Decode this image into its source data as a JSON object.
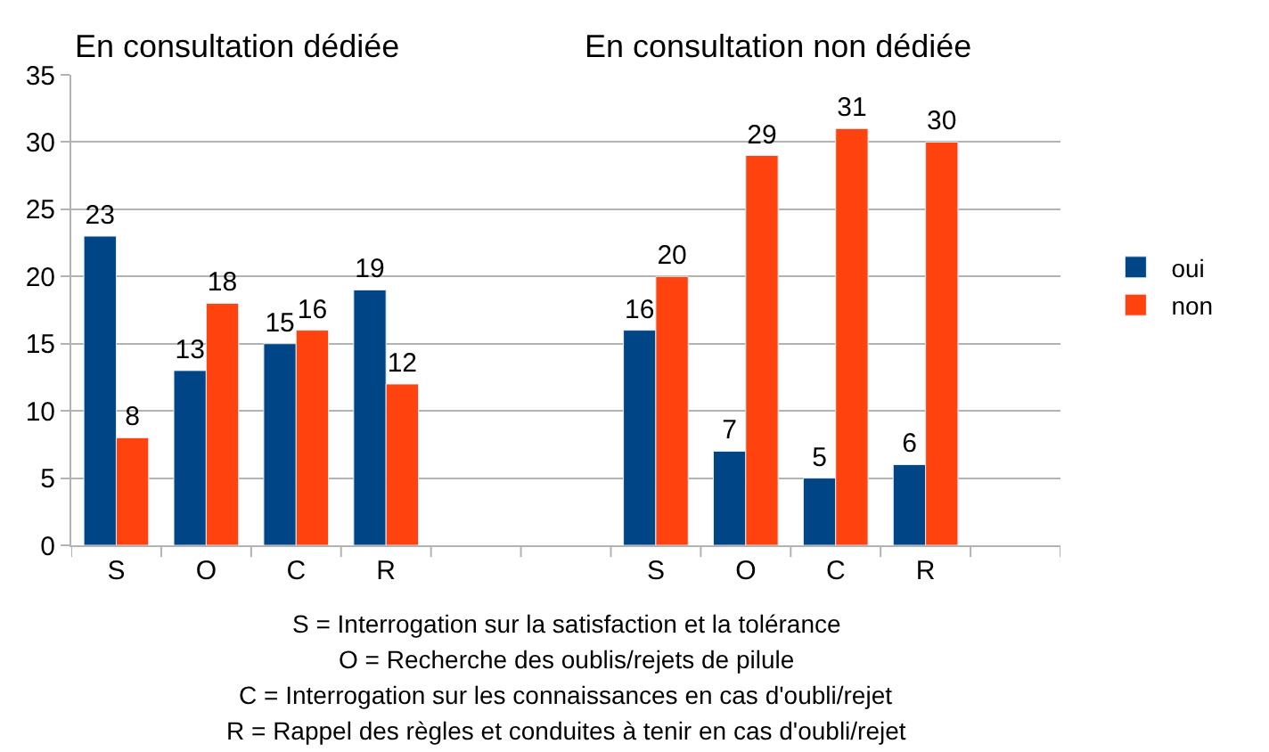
{
  "chart_data": {
    "type": "bar",
    "categories": [
      "S",
      "O",
      "C",
      "R",
      null,
      null,
      "S",
      "O",
      "C",
      "R",
      null
    ],
    "series": [
      {
        "name": "oui",
        "color": "#004586",
        "values": [
          23,
          13,
          15,
          19,
          null,
          null,
          16,
          7,
          5,
          6,
          null
        ]
      },
      {
        "name": "non",
        "color": "#ff420e",
        "values": [
          8,
          18,
          16,
          12,
          null,
          null,
          20,
          29,
          31,
          30,
          null
        ]
      }
    ],
    "ylim": [
      0,
      35
    ],
    "yticks": [
      0,
      5,
      10,
      15,
      20,
      25,
      30,
      35
    ],
    "grid": "y",
    "legend": "right",
    "data_labels": true,
    "annotations": [
      "En consultation dédiée",
      "En consultation non dédiée",
      "S = Interrogation sur la satisfaction et la tolérance",
      "O = Recherche des oublis/rejets de pilule",
      "C = Interrogation sur les connaissances en cas d'oubli/rejet",
      "R = Rappel des règles et conduites à tenir en cas d'oubli/rejet"
    ]
  }
}
